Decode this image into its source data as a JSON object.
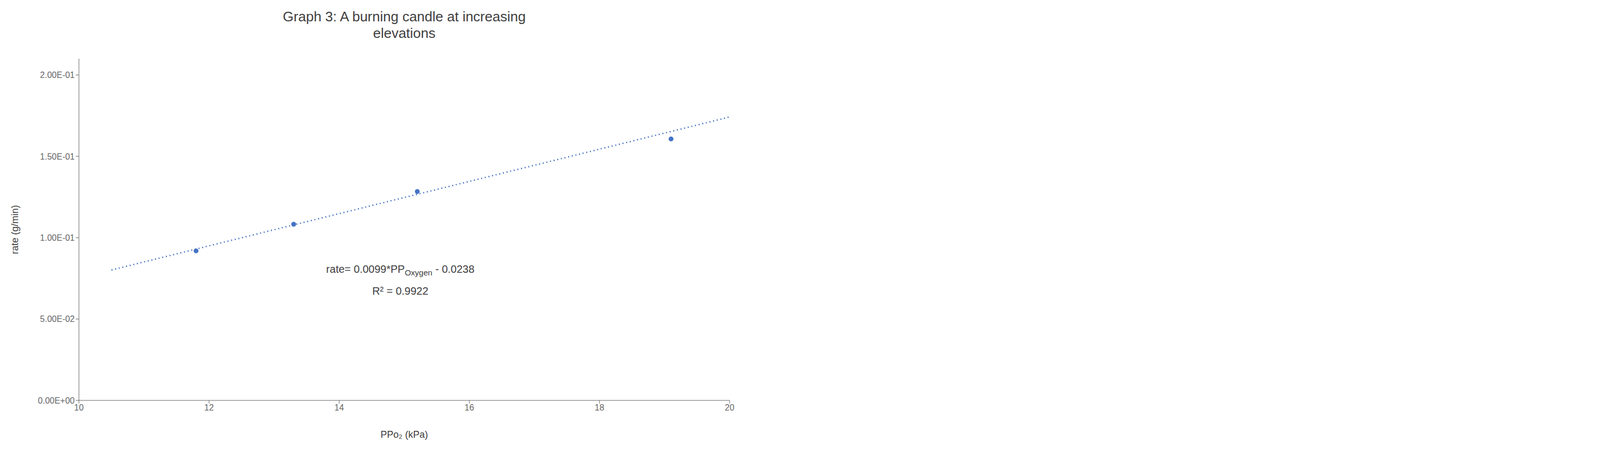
{
  "chart_data": {
    "type": "scatter",
    "title": "Graph 3: A burning candle at increasing\nelevations",
    "x_label": "PPo₂ (kPa)",
    "y_label": "rate (g/min)",
    "xlim": [
      10,
      20
    ],
    "ylim": [
      0,
      0.21
    ],
    "xticks": [
      10,
      12,
      14,
      16,
      18,
      20
    ],
    "yticks": [
      {
        "value": 0.0,
        "label": "0.00E+00"
      },
      {
        "value": 0.05,
        "label": "5.00E-02"
      },
      {
        "value": 0.1,
        "label": "1.00E-01"
      },
      {
        "value": 0.15,
        "label": "1.50E-01"
      },
      {
        "value": 0.2,
        "label": "2.00E-01"
      }
    ],
    "grid": false,
    "series": [
      {
        "type": "scatter",
        "color": "#4472C4",
        "marker": "circle",
        "x": [
          11.8,
          13.3,
          15.2,
          19.1
        ],
        "values": [
          0.0919,
          0.1083,
          0.1284,
          0.1607
        ]
      },
      {
        "type": "line",
        "color": "#4472C4",
        "line_style": "dotted",
        "x": [
          10.5,
          20.0
        ],
        "values": [
          0.08015,
          0.1742
        ]
      }
    ],
    "annotations": [
      [
        "rate= 0.0099*PP",
        "Oxygen",
        " - 0.0238"
      ],
      [
        "R² = 0.9922"
      ]
    ]
  }
}
